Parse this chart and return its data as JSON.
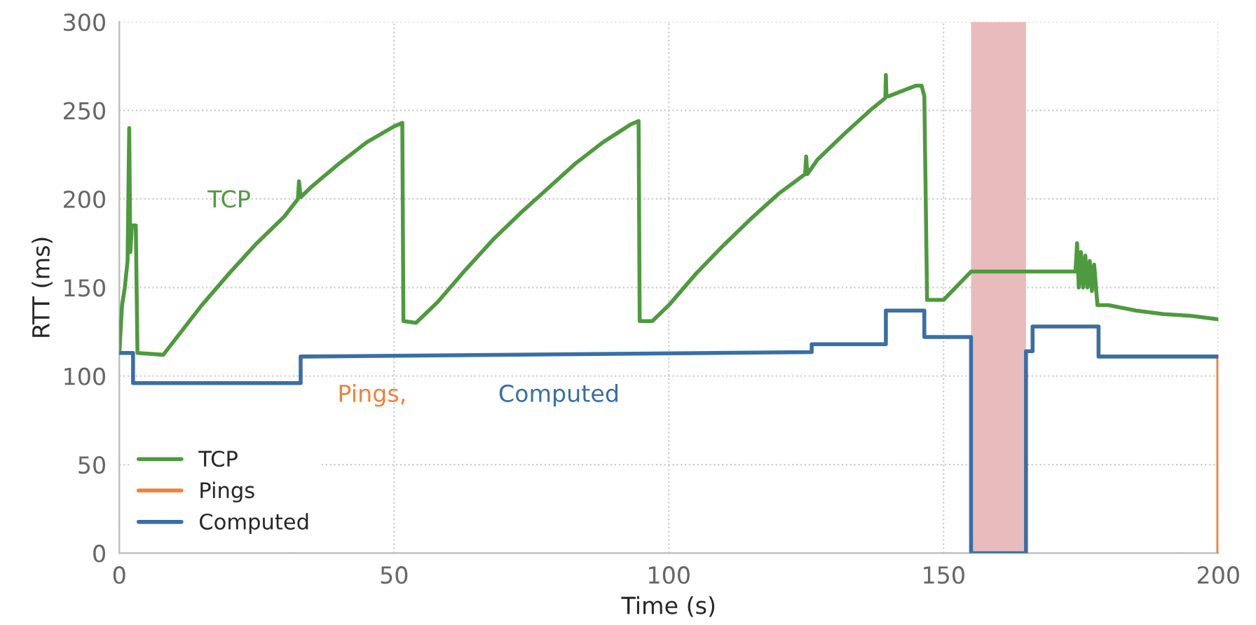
{
  "chart_data": {
    "type": "line",
    "xlabel": "Time (s)",
    "ylabel": "RTT (ms)",
    "xlim": [
      0,
      200
    ],
    "xticks": [
      0,
      50,
      100,
      150,
      200
    ],
    "ylim": [
      0,
      300
    ],
    "yticks": [
      0,
      50,
      100,
      150,
      200,
      250,
      300
    ],
    "grid": true,
    "legend": "bottom left",
    "series": [
      {
        "name": "TCP",
        "color": "#4e9a3e",
        "x": [
          0,
          0.5,
          1,
          1.5,
          1.8,
          2.0,
          2.3,
          3.0,
          3.3,
          8,
          10,
          15,
          20,
          25,
          30,
          32.5,
          32.7,
          33,
          35,
          40,
          45,
          50,
          51.5,
          51.7,
          54,
          58,
          63,
          68,
          73,
          78,
          83,
          88,
          93,
          94.5,
          94.7,
          97,
          100,
          105,
          110,
          115,
          120,
          124.8,
          125,
          125.2,
          127,
          132,
          137,
          139.4,
          139.5,
          139.6,
          140,
          145,
          146,
          146.5,
          147,
          150,
          155,
          174,
          174.3,
          174.6,
          175,
          175.4,
          175.8,
          176.2,
          176.6,
          177,
          177.4,
          178,
          180,
          185,
          190,
          195,
          200
        ],
        "values": [
          113,
          140,
          150,
          165,
          240,
          170,
          185,
          185,
          113,
          112,
          120,
          140,
          158,
          175,
          190,
          200,
          210,
          201,
          207,
          220,
          232,
          241,
          243,
          131,
          130,
          142,
          160,
          177,
          192,
          206,
          220,
          232,
          242,
          244,
          131,
          131,
          140,
          158,
          174,
          189,
          203,
          214,
          224,
          214,
          222,
          237,
          251,
          257,
          270,
          258,
          258,
          264,
          264,
          258,
          143,
          143,
          159,
          159,
          175,
          150,
          170,
          150,
          168,
          150,
          165,
          148,
          163,
          140,
          140,
          137,
          135,
          134,
          132
        ]
      },
      {
        "name": "Pings",
        "color": "#f0813a",
        "x": [
          200,
          200
        ],
        "values": [
          111,
          0
        ]
      },
      {
        "name": "Computed",
        "color": "#3a6ea5",
        "x": [
          0,
          2.5,
          2.5,
          33,
          33,
          126,
          126,
          139.5,
          139.5,
          146.5,
          146.5,
          155,
          155,
          165,
          165,
          166.2,
          166.2,
          178.2,
          178.2,
          200
        ],
        "values": [
          113,
          113,
          96,
          96,
          111,
          113.5,
          118,
          118,
          137,
          137,
          122,
          122,
          0,
          0,
          114,
          114,
          128,
          128,
          111,
          111
        ]
      }
    ],
    "bands": [
      {
        "axis": "x",
        "from": 155,
        "to": 165,
        "color": "#e8bcbc"
      }
    ],
    "annotations": [
      "TCP",
      "Pings,",
      "Computed"
    ]
  }
}
